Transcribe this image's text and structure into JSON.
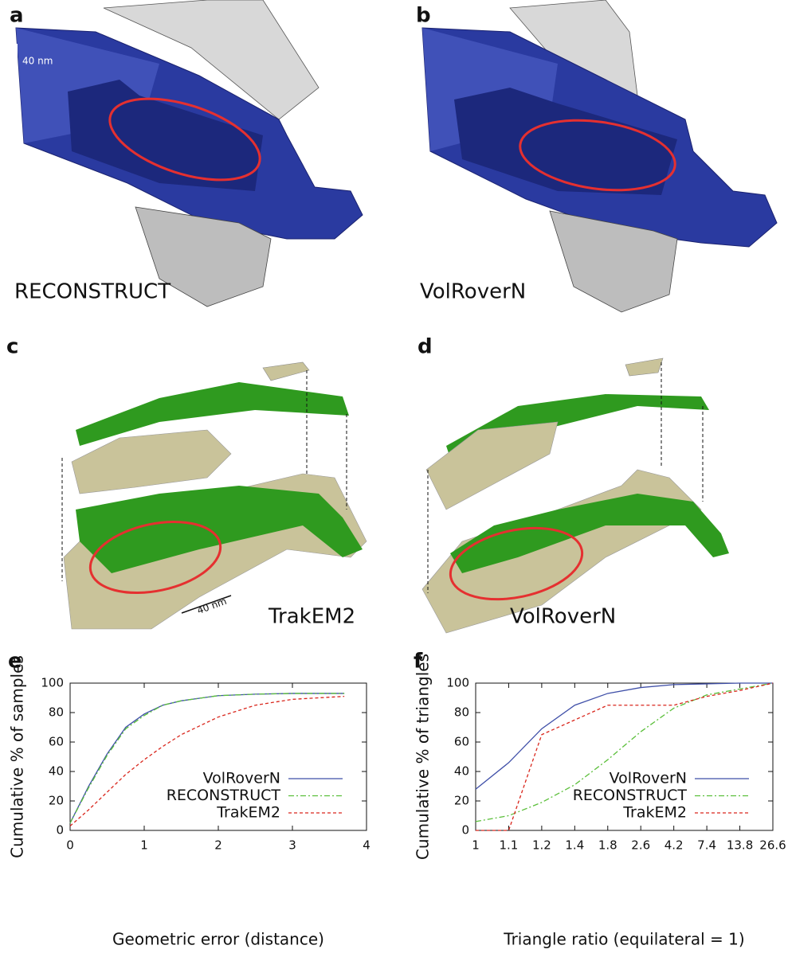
{
  "panels": [
    {
      "label": "a",
      "caption": "RECONSTRUCT",
      "scale": "40 nm"
    },
    {
      "label": "b",
      "caption": "VolRoverN"
    },
    {
      "label": "c",
      "caption": "TrakEM2",
      "scale": "40 nm"
    },
    {
      "label": "d",
      "caption": "VolRoverN"
    }
  ],
  "chart_data": [
    {
      "type": "line",
      "panel_label": "e",
      "x_label": "Geometric error (distance)",
      "y_label": "Cumulative % of samples",
      "x": [
        0,
        0.25,
        0.5,
        0.75,
        1,
        1.25,
        1.5,
        2,
        2.5,
        3,
        3.7
      ],
      "xlim": [
        0,
        4
      ],
      "xticks": [
        0,
        1,
        2,
        3,
        4
      ],
      "ylim": [
        0,
        100
      ],
      "yticks": [
        0,
        20,
        40,
        60,
        80,
        100
      ],
      "legend": "bottom-right",
      "series": [
        {
          "name": "VolRoverN",
          "color": "#3f4fa8",
          "dash": "solid",
          "values": [
            5,
            30,
            52,
            70,
            79,
            85,
            88,
            91.5,
            92.5,
            93,
            93
          ]
        },
        {
          "name": "RECONSTRUCT",
          "color": "#5bbf3a",
          "dash": "dash-dot",
          "values": [
            5,
            29,
            51,
            69,
            78,
            85,
            88,
            91.5,
            92.5,
            93,
            93
          ]
        },
        {
          "name": "TrakEM2",
          "color": "#d9261c",
          "dash": "dashed",
          "values": [
            3,
            14,
            26,
            38,
            48,
            57,
            65,
            77,
            85,
            89,
            91
          ]
        }
      ]
    },
    {
      "type": "line",
      "panel_label": "f",
      "x_label": "Triangle ratio (equilateral = 1)",
      "y_label": "Cumulative % of triangles",
      "categories": [
        "1",
        "1.1",
        "1.2",
        "1.4",
        "1.8",
        "2.6",
        "4.2",
        "7.4",
        "13.8",
        "26.6"
      ],
      "ylim": [
        0,
        100
      ],
      "yticks": [
        0,
        20,
        40,
        60,
        80,
        100
      ],
      "legend": "bottom-right",
      "series": [
        {
          "name": "VolRoverN",
          "color": "#3f4fa8",
          "dash": "solid",
          "values": [
            28,
            46,
            69,
            85,
            93,
            97,
            99,
            99.5,
            100,
            100
          ]
        },
        {
          "name": "RECONSTRUCT",
          "color": "#5bbf3a",
          "dash": "dash-dot",
          "values": [
            6,
            10,
            19,
            31,
            48,
            67,
            83,
            92,
            96,
            100
          ]
        },
        {
          "name": "TrakEM2",
          "color": "#d9261c",
          "dash": "dashed",
          "values": [
            0,
            0,
            65,
            75,
            85,
            85,
            85,
            91,
            95,
            100
          ]
        }
      ]
    }
  ]
}
